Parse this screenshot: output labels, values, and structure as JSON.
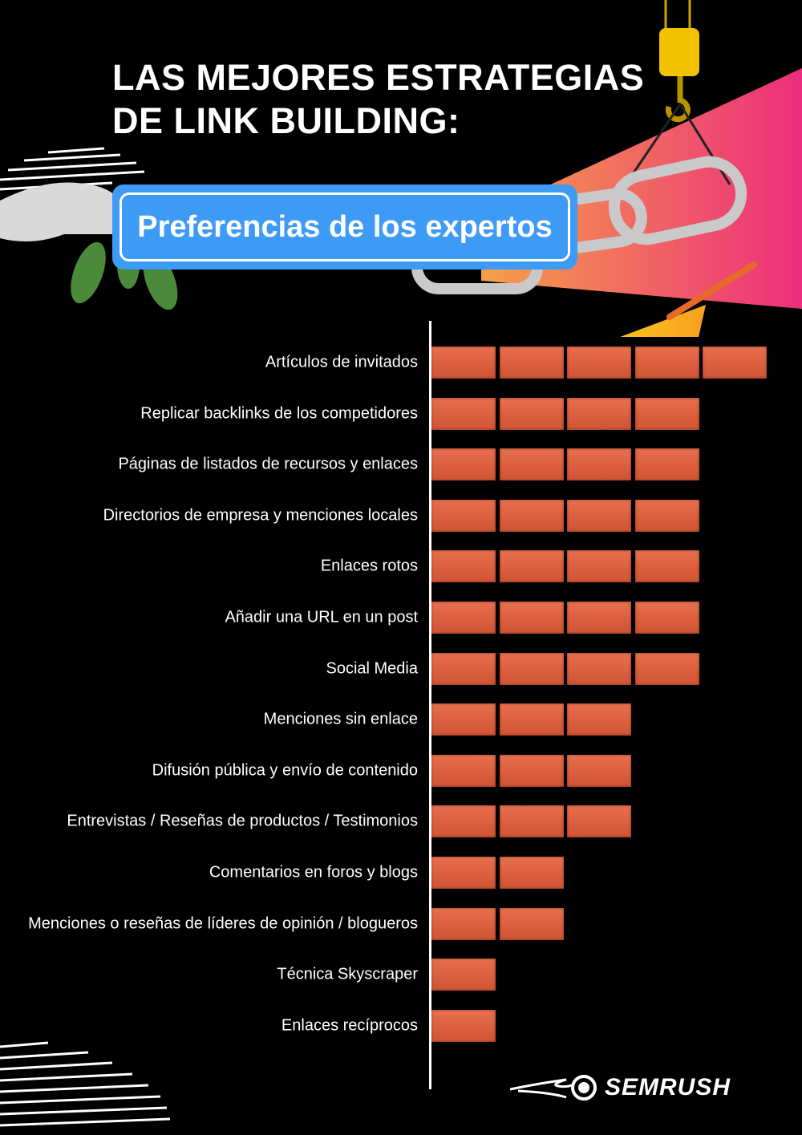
{
  "title_lines": [
    "LAS MEJORES ESTRATEGIAS",
    "DE LINK BUILDING:"
  ],
  "subtitle": "Preferencias de los expertos",
  "brand": "SEMRUSH",
  "colors": {
    "brick": "#dd6040",
    "subtitle_box": "#3d9bf5",
    "beam_start": "#f5a04a",
    "beam_end": "#ec2e7c",
    "background": "#000000"
  },
  "chart_data": {
    "type": "bar",
    "orientation": "horizontal",
    "unit": "bricks",
    "categories": [
      "Artículos de invitados",
      "Replicar backlinks de los competidores",
      "Páginas de listados de recursos y enlaces",
      "Directorios de empresa y menciones locales",
      "Enlaces rotos",
      "Añadir una URL en un post",
      "Social Media",
      "Menciones sin enlace",
      "Difusión pública y envío de contenido",
      "Entrevistas / Reseñas de productos / Testimonios",
      "Comentarios en foros y blogs",
      "Menciones o reseñas de líderes de opinión / blogueros",
      "Técnica Skyscraper",
      "Enlaces recíprocos"
    ],
    "values": [
      5,
      4,
      4,
      4,
      4,
      4,
      4,
      3,
      3,
      3,
      2,
      2,
      1,
      1
    ],
    "grid": false
  }
}
